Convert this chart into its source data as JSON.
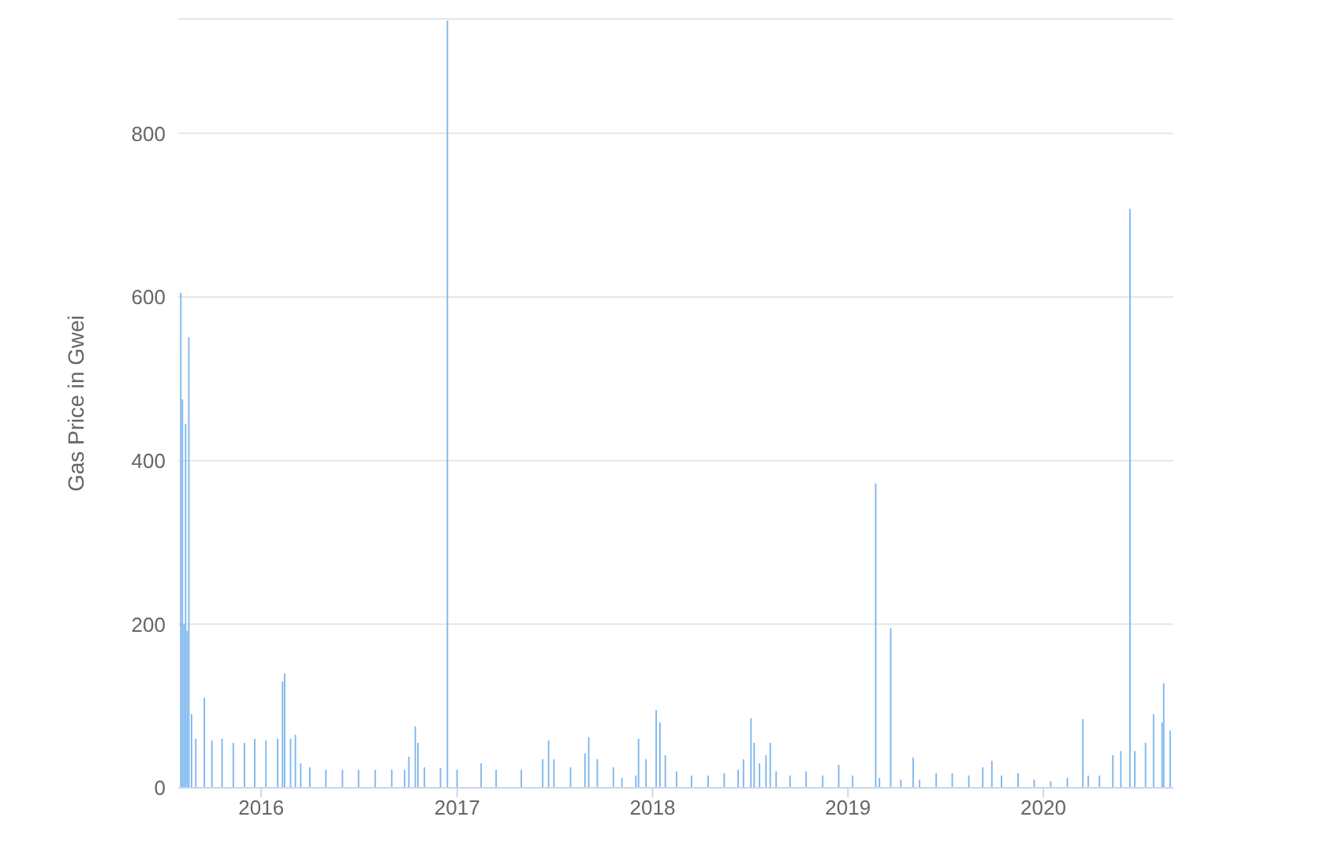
{
  "chart_data": {
    "type": "bar",
    "ylabel": "Gas Price in Gwei",
    "color": "#7cb5ec",
    "x": [
      "2015-08-04",
      "2015-08-07",
      "2015-08-10",
      "2015-08-13",
      "2015-08-16",
      "2015-08-19",
      "2015-08-24",
      "2015-09-01",
      "2015-09-17",
      "2015-10-01",
      "2015-10-20",
      "2015-11-10",
      "2015-12-01",
      "2015-12-20",
      "2016-01-10",
      "2016-02-01",
      "2016-02-10",
      "2016-02-14",
      "2016-02-25",
      "2016-03-05",
      "2016-03-15",
      "2016-04-01",
      "2016-05-01",
      "2016-06-01",
      "2016-07-01",
      "2016-08-01",
      "2016-09-01",
      "2016-09-25",
      "2016-10-03",
      "2016-10-15",
      "2016-10-20",
      "2016-11-01",
      "2016-12-01",
      "2016-12-14",
      "2017-01-01",
      "2017-02-15",
      "2017-03-15",
      "2017-05-01",
      "2017-06-10",
      "2017-06-21",
      "2017-07-01",
      "2017-08-01",
      "2017-08-28",
      "2017-09-04",
      "2017-09-20",
      "2017-10-20",
      "2017-11-05",
      "2017-12-01",
      "2017-12-06",
      "2017-12-20",
      "2018-01-08",
      "2018-01-15",
      "2018-01-25",
      "2018-02-15",
      "2018-03-15",
      "2018-04-15",
      "2018-05-15",
      "2018-06-10",
      "2018-06-20",
      "2018-07-04",
      "2018-07-10",
      "2018-07-20",
      "2018-08-01",
      "2018-08-09",
      "2018-08-20",
      "2018-09-15",
      "2018-10-15",
      "2018-11-15",
      "2018-12-15",
      "2019-01-10",
      "2019-02-22",
      "2019-03-01",
      "2019-03-22",
      "2019-04-10",
      "2019-05-03",
      "2019-05-15",
      "2019-06-15",
      "2019-07-15",
      "2019-08-15",
      "2019-09-10",
      "2019-09-27",
      "2019-10-15",
      "2019-11-15",
      "2019-12-15",
      "2020-01-15",
      "2020-02-15",
      "2020-03-15",
      "2020-03-25",
      "2020-04-15",
      "2020-05-10",
      "2020-05-25",
      "2020-06-11",
      "2020-06-20",
      "2020-07-10",
      "2020-07-25",
      "2020-08-10",
      "2020-08-13",
      "2020-08-25"
    ],
    "values": [
      605,
      475,
      200,
      445,
      192,
      551,
      90,
      60,
      110,
      58,
      60,
      55,
      55,
      60,
      58,
      60,
      130,
      140,
      60,
      65,
      30,
      25,
      22,
      22,
      22,
      22,
      22,
      22,
      38,
      75,
      55,
      25,
      24,
      938,
      22,
      30,
      22,
      22,
      35,
      58,
      35,
      25,
      42,
      62,
      35,
      25,
      12,
      15,
      60,
      35,
      95,
      80,
      40,
      20,
      15,
      15,
      18,
      22,
      35,
      85,
      55,
      30,
      40,
      55,
      20,
      15,
      20,
      15,
      28,
      15,
      372,
      12,
      195,
      10,
      37,
      10,
      18,
      18,
      15,
      25,
      33,
      15,
      18,
      10,
      8,
      12,
      84,
      15,
      15,
      40,
      45,
      708,
      45,
      55,
      90,
      80,
      128,
      70
    ],
    "xlim": [
      "2015-07-30",
      "2020-08-31"
    ],
    "xticks": [
      "2016",
      "2017",
      "2018",
      "2019",
      "2020"
    ],
    "ylim": [
      0,
      940
    ],
    "yticks": [
      0,
      200,
      400,
      600,
      800
    ],
    "grid": "y"
  }
}
